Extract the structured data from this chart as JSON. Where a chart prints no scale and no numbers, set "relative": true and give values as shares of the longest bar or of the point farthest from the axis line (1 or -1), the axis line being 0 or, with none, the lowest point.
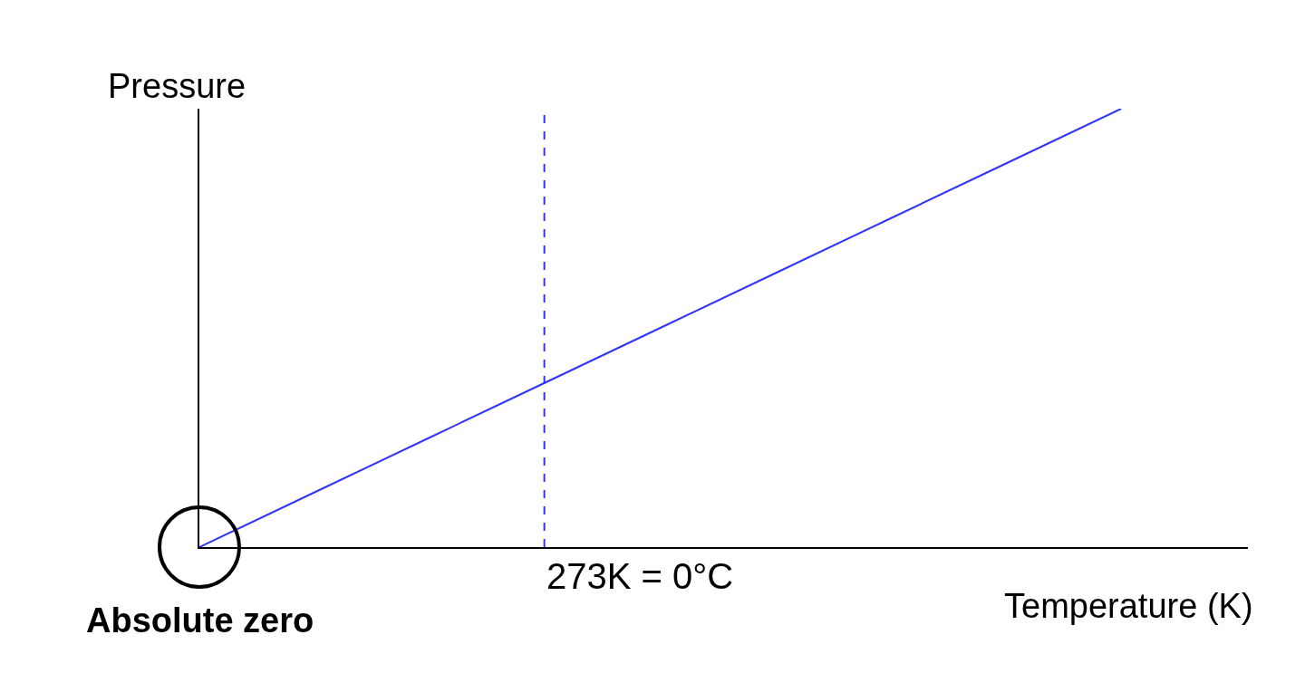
{
  "chart_data": {
    "type": "line",
    "xlabel": "Temperature (K)",
    "ylabel": "Pressure",
    "relative": true,
    "categories": [
      null,
      null,
      null,
      null,
      null,
      null,
      null,
      null,
      null
    ],
    "series": [
      {
        "color": "#3333ff",
        "values": [
          0,
          0.125,
          0.25,
          0.375,
          0.5,
          0.625,
          0.75,
          0.875,
          1
        ]
      }
    ],
    "annotations": [
      "Absolute zero",
      "273K = 0°C"
    ]
  }
}
